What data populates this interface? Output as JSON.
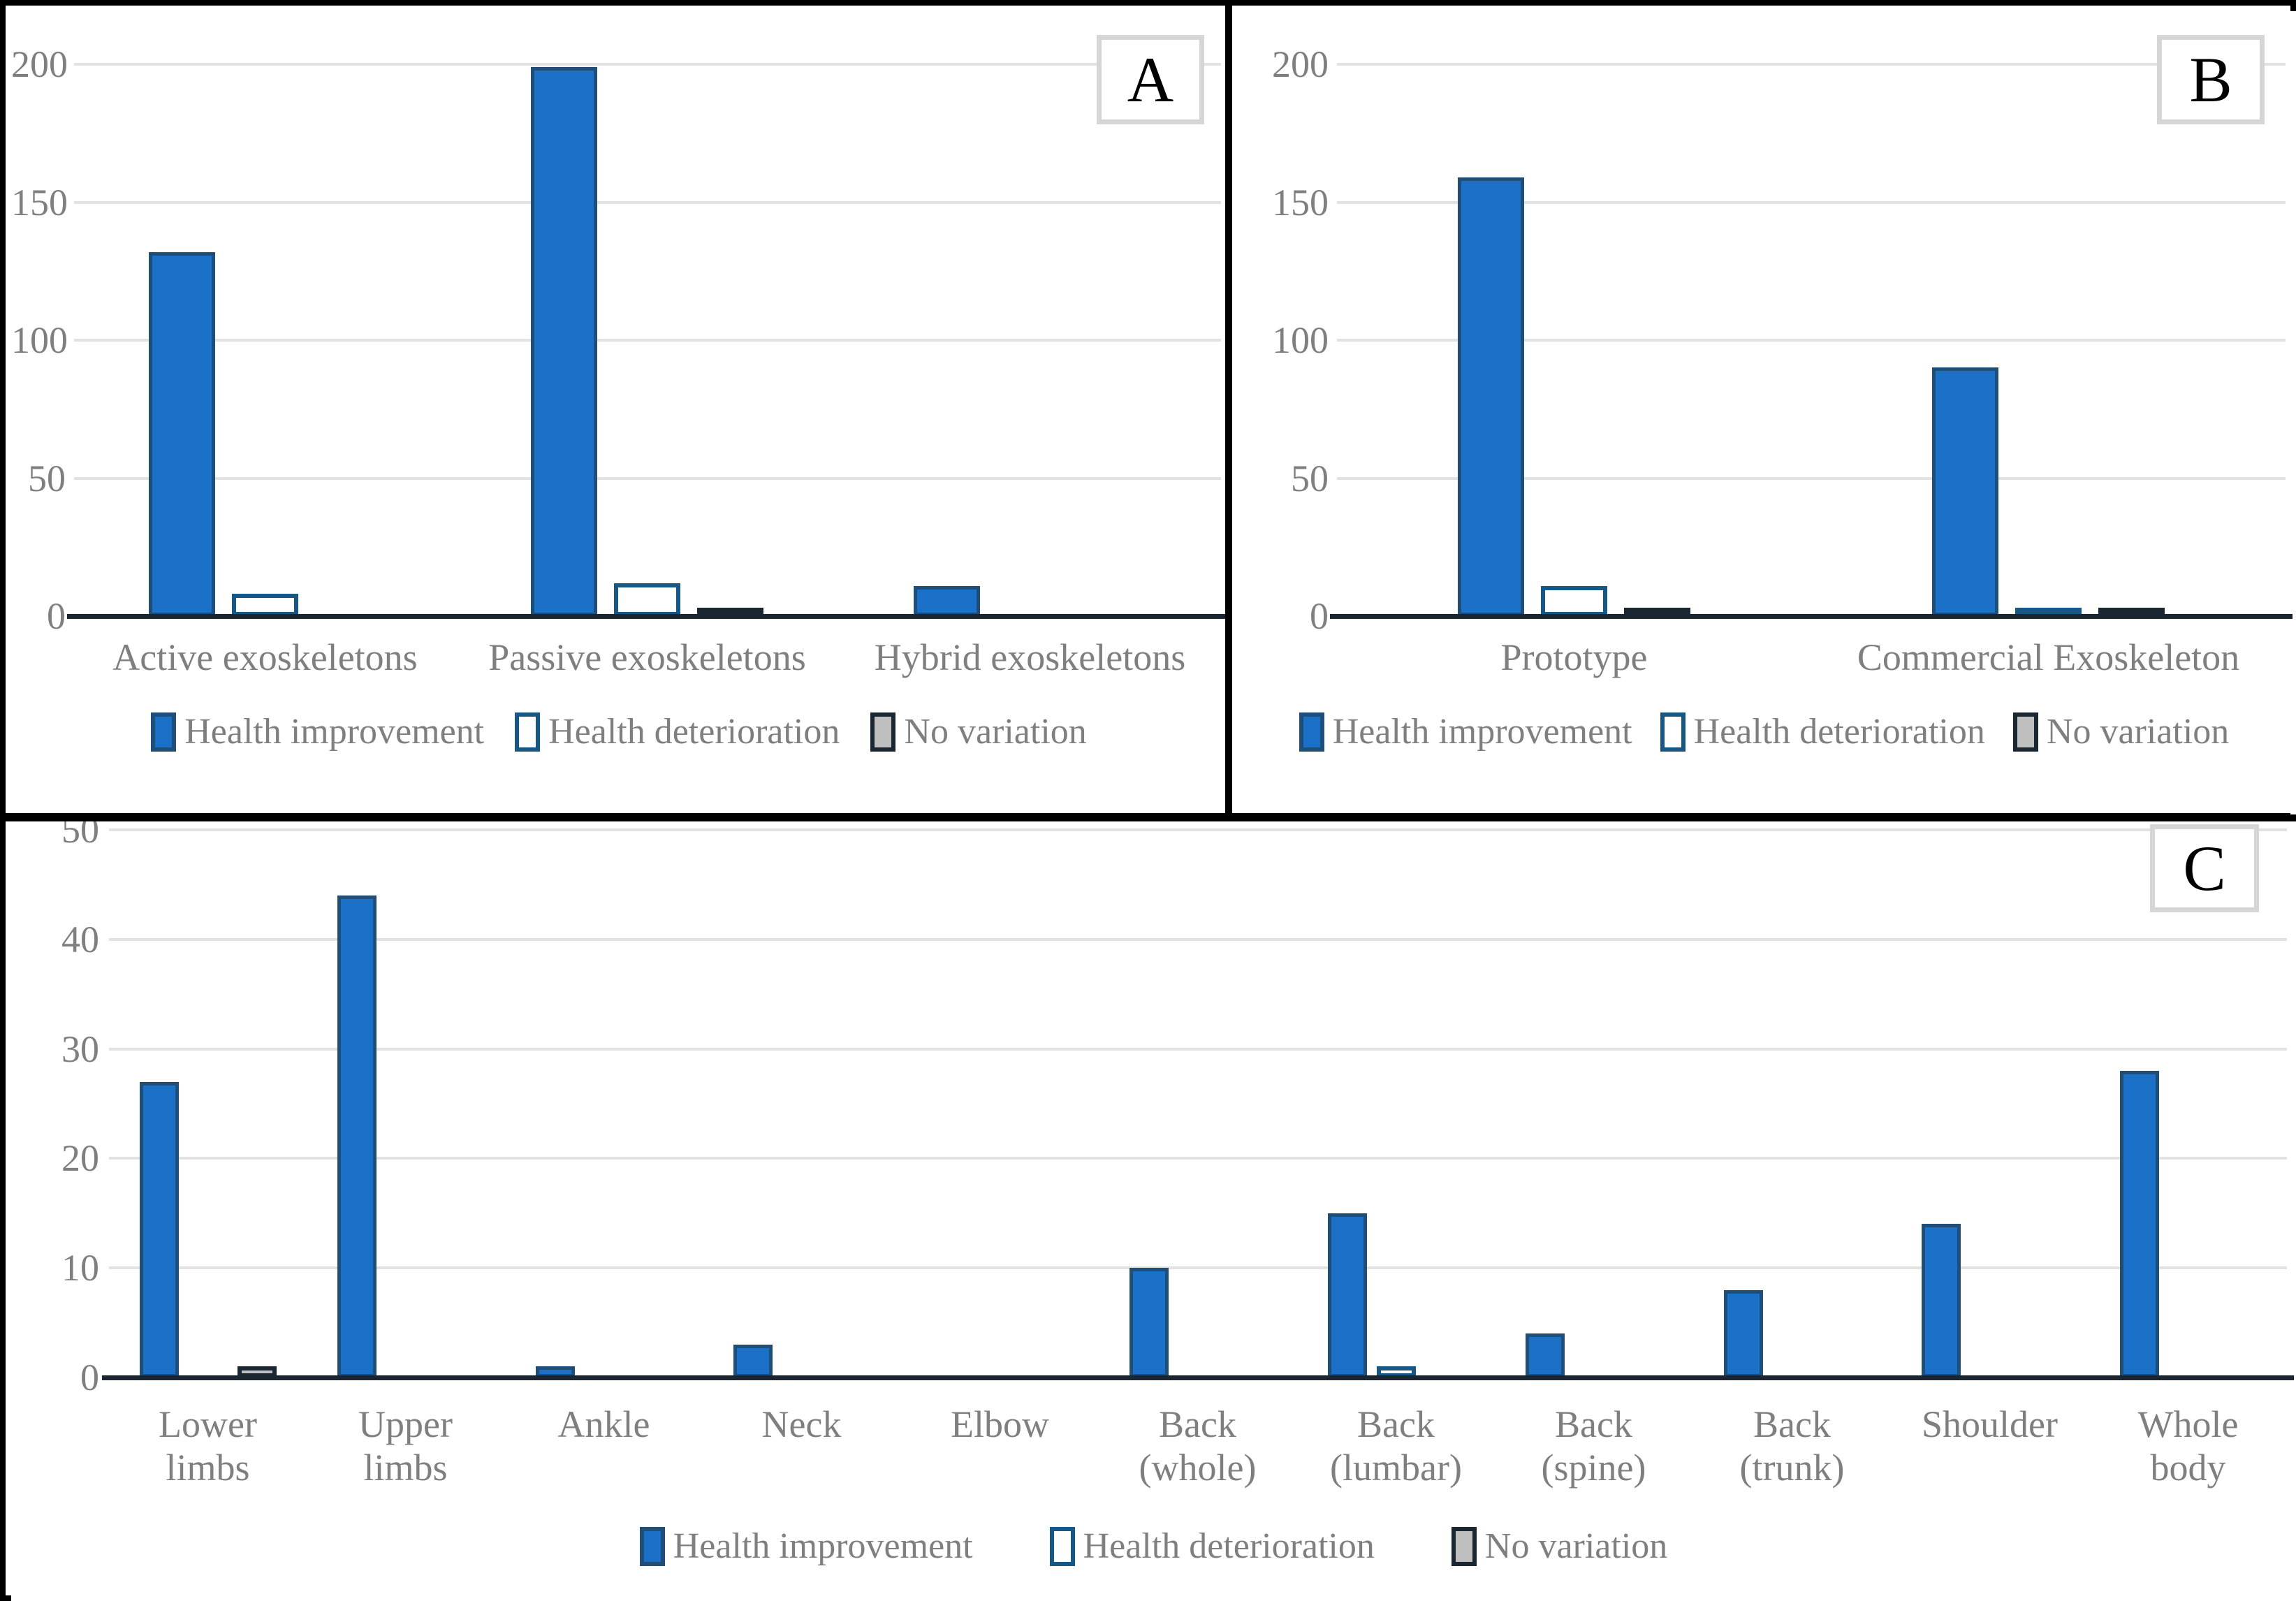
{
  "figure": {
    "background": "#ffffff",
    "border_color": "#000000",
    "description_visible_text_only": true
  },
  "styles": {
    "improvement_fill": "#1b70c8",
    "improvement_border": "#1f4e79",
    "deterioration_fill": "#ffffff",
    "deterioration_border": "#175786",
    "novariation_fill": "#bfbfbf",
    "novariation_border": "#1a2733",
    "gridline_color": "#e2e2e2",
    "axis_color": "#1a2733",
    "text_color": "#7f7f7f",
    "panel_box_border": "#d6d6d6"
  },
  "chart_data": [
    {
      "panel": "A",
      "panel_label": "A",
      "type": "bar",
      "categories": [
        "Active exoskeletons",
        "Passive exoskeletons",
        "Hybrid exoskeletons"
      ],
      "series": [
        {
          "name": "Health improvement",
          "values": [
            132,
            199,
            11
          ]
        },
        {
          "name": "Health deterioration",
          "values": [
            8,
            12,
            0
          ]
        },
        {
          "name": "No variation",
          "values": [
            0,
            3,
            0
          ]
        }
      ],
      "ylim": [
        0,
        200
      ],
      "yticks": [
        0,
        50,
        100,
        150,
        200
      ],
      "grid": true,
      "legend_position": "bottom"
    },
    {
      "panel": "B",
      "panel_label": "B",
      "type": "bar",
      "categories": [
        "Prototype",
        "Commercial Exoskeleton"
      ],
      "series": [
        {
          "name": "Health improvement",
          "values": [
            159,
            90
          ]
        },
        {
          "name": "Health deterioration",
          "values": [
            11,
            1
          ]
        },
        {
          "name": "No variation",
          "values": [
            2,
            1
          ]
        }
      ],
      "ylim": [
        0,
        200
      ],
      "yticks": [
        0,
        50,
        100,
        150,
        200
      ],
      "grid": true,
      "legend_position": "bottom"
    },
    {
      "panel": "C",
      "panel_label": "C",
      "type": "bar",
      "categories": [
        "Lower limbs",
        "Upper limbs",
        "Ankle",
        "Neck",
        "Elbow",
        "Back (whole)",
        "Back (lumbar)",
        "Back (spine)",
        "Back (trunk)",
        "Shoulder",
        "Whole body"
      ],
      "series": [
        {
          "name": "Health improvement",
          "values": [
            27,
            44,
            1,
            3,
            0,
            10,
            15,
            4,
            8,
            14,
            28
          ]
        },
        {
          "name": "Health deterioration",
          "values": [
            0,
            0,
            0,
            0,
            0,
            0,
            1,
            0,
            0,
            0,
            0
          ]
        },
        {
          "name": "No variation",
          "values": [
            1,
            0,
            0,
            0,
            0,
            0,
            0,
            0,
            0,
            0,
            0
          ]
        }
      ],
      "ylim": [
        0,
        50
      ],
      "yticks": [
        0,
        10,
        20,
        30,
        40,
        50
      ],
      "grid": true,
      "legend_position": "bottom"
    }
  ]
}
